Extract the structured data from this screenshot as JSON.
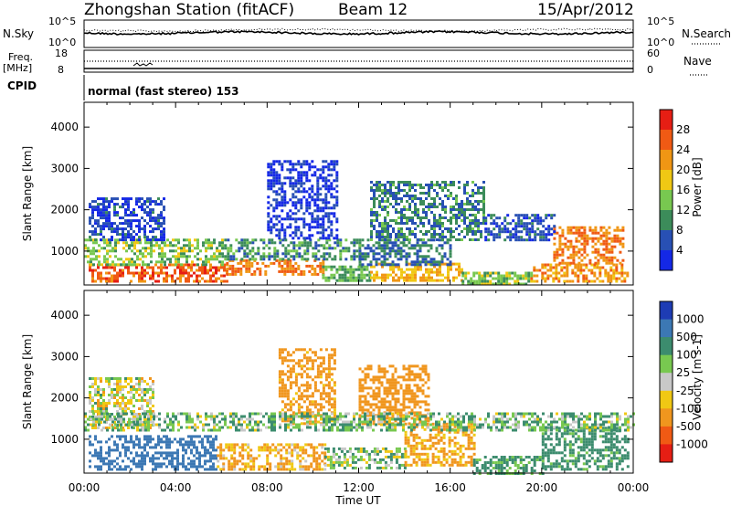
{
  "header": {
    "station": "Zhongshan Station (fitACF)",
    "beam": "Beam 12",
    "date": "15/Apr/2012"
  },
  "top_panels": {
    "nsky_label": "N.Sky",
    "nsky_ticks": [
      "10^5",
      "10^0"
    ],
    "nsearch_label": "N.Search",
    "nsearch_ticks": [
      "10^5",
      "10^0"
    ],
    "freq_label": "Freq.",
    "freq_unit": "[MHz]",
    "freq_ticks": [
      "18",
      "8"
    ],
    "nave_label": "Nave",
    "nave_ticks": [
      "60",
      "0"
    ],
    "cpid_label": "CPID",
    "cpid_text": "normal (fast stereo) 153"
  },
  "chart_data": [
    {
      "type": "heatmap",
      "panel": "power",
      "ylabel": "Slant Range [km]",
      "x_ticks": [
        "00:00",
        "04:00",
        "08:00",
        "12:00",
        "16:00",
        "20:00",
        "00:00"
      ],
      "xlim_hours": [
        0,
        24
      ],
      "y_ticks": [
        1000,
        2000,
        3000,
        4000
      ],
      "ylim": [
        180,
        4600
      ],
      "colorbar": {
        "label": "Power [dB]",
        "ticks": [
          "4",
          "8",
          "12",
          "16",
          "20",
          "24",
          "28"
        ],
        "colors": [
          "#1428e6",
          "#2850b4",
          "#3c8c5a",
          "#78c850",
          "#f0c814",
          "#f09614",
          "#f05a14",
          "#e61e14"
        ]
      },
      "bands": [
        {
          "x": [
            0.2,
            6.2
          ],
          "y": [
            300,
            700
          ],
          "value": 26
        },
        {
          "x": [
            6.2,
            10.4
          ],
          "y": [
            420,
            800
          ],
          "value": 24
        },
        {
          "x": [
            10.4,
            12.5
          ],
          "y": [
            300,
            650
          ],
          "value": 12
        },
        {
          "x": [
            12.5,
            16.5
          ],
          "y": [
            300,
            720
          ],
          "value": 20
        },
        {
          "x": [
            16.5,
            19.5
          ],
          "y": [
            200,
            500
          ],
          "value": 14
        },
        {
          "x": [
            19.5,
            23.8
          ],
          "y": [
            250,
            700
          ],
          "value": 22
        },
        {
          "x": [
            0,
            6
          ],
          "y": [
            700,
            1300
          ],
          "value": 14
        },
        {
          "x": [
            6,
            12
          ],
          "y": [
            800,
            1300
          ],
          "value": 10
        },
        {
          "x": [
            12,
            16
          ],
          "y": [
            700,
            1300
          ],
          "value": 8
        },
        {
          "x": [
            20.5,
            23.5
          ],
          "y": [
            700,
            1600
          ],
          "value": 24
        },
        {
          "x": [
            0.2,
            3.5
          ],
          "y": [
            1300,
            2300
          ],
          "value": 5
        },
        {
          "x": [
            8,
            11
          ],
          "y": [
            1300,
            3200
          ],
          "value": 3
        },
        {
          "x": [
            12.5,
            17.5
          ],
          "y": [
            1300,
            2700
          ],
          "value": 9
        },
        {
          "x": [
            17.5,
            20.5
          ],
          "y": [
            1300,
            1900
          ],
          "value": 6
        }
      ]
    },
    {
      "type": "heatmap",
      "panel": "velocity",
      "ylabel": "Slant Range [km]",
      "xlabel": "Time UT",
      "x_ticks": [
        "00:00",
        "04:00",
        "08:00",
        "12:00",
        "16:00",
        "20:00",
        "00:00"
      ],
      "xlim_hours": [
        0,
        24
      ],
      "y_ticks": [
        1000,
        2000,
        3000,
        4000
      ],
      "ylim": [
        180,
        4600
      ],
      "colorbar": {
        "label": "Velocity [m s-1]",
        "ticks": [
          "1000",
          "500",
          "100",
          "25",
          "-25",
          "-100",
          "-500",
          "-1000"
        ],
        "colors": [
          "#1e3cb4",
          "#3c78b4",
          "#3c8c6e",
          "#78c850",
          "#c8c8c8",
          "#f0c814",
          "#f0961e",
          "#f05a14",
          "#e61e14"
        ]
      },
      "bands": [
        {
          "x": [
            0.2,
            5.8
          ],
          "y": [
            300,
            1100
          ],
          "value": 800
        },
        {
          "x": [
            5.8,
            10.5
          ],
          "y": [
            300,
            900
          ],
          "value": -120
        },
        {
          "x": [
            10.5,
            14
          ],
          "y": [
            300,
            800
          ],
          "value": 60
        },
        {
          "x": [
            14,
            17
          ],
          "y": [
            400,
            1400
          ],
          "value": -150
        },
        {
          "x": [
            17,
            20
          ],
          "y": [
            200,
            600
          ],
          "value": 150
        },
        {
          "x": [
            20,
            23.8
          ],
          "y": [
            300,
            1300
          ],
          "value": 200
        },
        {
          "x": [
            0.2,
            3
          ],
          "y": [
            1300,
            2500
          ],
          "value": 0
        },
        {
          "x": [
            8.5,
            11
          ],
          "y": [
            1400,
            3200
          ],
          "value": -200
        },
        {
          "x": [
            12,
            15
          ],
          "y": [
            1400,
            2800
          ],
          "value": -300
        },
        {
          "x": [
            0,
            24
          ],
          "y": [
            1250,
            1650
          ],
          "value": 80
        }
      ]
    }
  ]
}
